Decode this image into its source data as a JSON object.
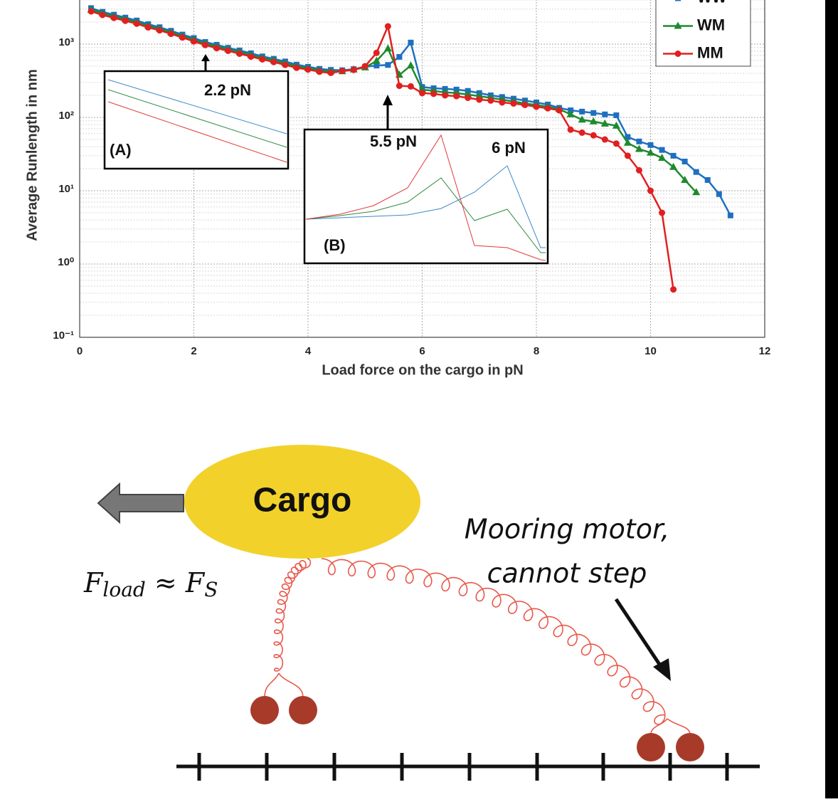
{
  "chart_data": {
    "type": "line",
    "x_label": "Load force on the cargo in pN",
    "y_label": "Average Runlength in nm",
    "log_y": true,
    "grid": true,
    "legend": "upper right",
    "xlim": [
      0,
      12
    ],
    "xticks": [
      0,
      2,
      4,
      6,
      8,
      10,
      12
    ],
    "ylim": [
      0.1,
      10000
    ],
    "yticks": [
      {
        "value": 0.1,
        "label": "10⁻¹"
      },
      {
        "value": 1,
        "label": "10⁰"
      },
      {
        "value": 10,
        "label": "10¹"
      },
      {
        "value": 100,
        "label": "10²"
      },
      {
        "value": 1000,
        "label": "10³"
      }
    ],
    "x": [
      0.2,
      0.4,
      0.6,
      0.8,
      1.0,
      1.2,
      1.4,
      1.6,
      1.8,
      2.0,
      2.2,
      2.4,
      2.6,
      2.8,
      3.0,
      3.2,
      3.4,
      3.6,
      3.8,
      4.0,
      4.2,
      4.4,
      4.6,
      4.8,
      5.0,
      5.2,
      5.4,
      5.6,
      5.8,
      6.0,
      6.2,
      6.4,
      6.6,
      6.8,
      7.0,
      7.2,
      7.4,
      7.6,
      7.8,
      8.0,
      8.2,
      8.4,
      8.6,
      8.8,
      9.0,
      9.2,
      9.4,
      9.6,
      9.8,
      10.0,
      10.2,
      10.4,
      10.6,
      10.8,
      11.0,
      11.2,
      11.4
    ],
    "series": [
      {
        "name": "WW",
        "color": "#1f6fc0",
        "marker": "square",
        "values": [
          3100,
          2760,
          2520,
          2300,
          2100,
          1870,
          1700,
          1520,
          1350,
          1210,
          1070,
          980,
          890,
          820,
          750,
          680,
          630,
          580,
          525,
          490,
          460,
          445,
          440,
          455,
          490,
          510,
          520,
          670,
          1050,
          260,
          250,
          245,
          240,
          230,
          215,
          200,
          190,
          180,
          170,
          160,
          150,
          135,
          125,
          120,
          115,
          110,
          107,
          54,
          47,
          42,
          36,
          30,
          25,
          18,
          14,
          9,
          4.6
        ]
      },
      {
        "name": "WM",
        "color": "#1e8a2e",
        "marker": "triangle",
        "values": [
          2950,
          2630,
          2400,
          2190,
          2000,
          1780,
          1620,
          1450,
          1290,
          1150,
          1020,
          930,
          850,
          780,
          710,
          650,
          600,
          550,
          500,
          470,
          440,
          425,
          425,
          450,
          480,
          590,
          870,
          380,
          510,
          240,
          230,
          220,
          215,
          205,
          195,
          185,
          175,
          165,
          155,
          148,
          140,
          130,
          110,
          93,
          88,
          82,
          77,
          45,
          37,
          33,
          28,
          21,
          14,
          9.5,
          null,
          null,
          null
        ]
      },
      {
        "name": "MM",
        "color": "#e02020",
        "marker": "circle",
        "values": [
          2800,
          2500,
          2280,
          2080,
          1900,
          1690,
          1540,
          1380,
          1230,
          1090,
          970,
          880,
          810,
          740,
          675,
          620,
          570,
          520,
          475,
          450,
          420,
          405,
          430,
          445,
          500,
          760,
          1750,
          270,
          265,
          215,
          210,
          200,
          195,
          185,
          175,
          170,
          160,
          155,
          148,
          140,
          133,
          125,
          68,
          62,
          57,
          50,
          44,
          30,
          19,
          10,
          5,
          0.45,
          null,
          null,
          null,
          null,
          null
        ]
      }
    ],
    "annotations": {
      "inset_a_force": "2.2 pN",
      "inset_a_label": "(A)",
      "inset_b_force_1": "5.5 pN",
      "inset_b_force_2": "6 pN",
      "inset_b_label": "(B)"
    }
  },
  "diagram": {
    "cargo_label": "Cargo",
    "force_label": [
      "F",
      "load",
      " ≈ F",
      "S"
    ],
    "mooring_label": [
      "Mooring motor,",
      "cannot step"
    ]
  }
}
